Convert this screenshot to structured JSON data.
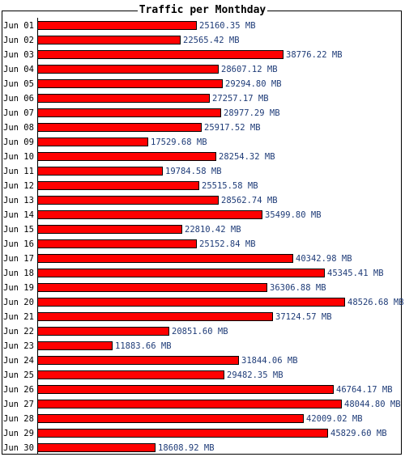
{
  "colors": {
    "bar": "#ff0000",
    "bar_border": "#000000",
    "value_text": "#1f3c78"
  },
  "chart_data": {
    "type": "bar",
    "orientation": "horizontal",
    "title": "Traffic per Monthday",
    "xlabel": "",
    "ylabel": "",
    "grid": false,
    "legend": "none",
    "categories": [
      "Jun 01",
      "Jun 02",
      "Jun 03",
      "Jun 04",
      "Jun 05",
      "Jun 06",
      "Jun 07",
      "Jun 08",
      "Jun 09",
      "Jun 10",
      "Jun 11",
      "Jun 12",
      "Jun 13",
      "Jun 14",
      "Jun 15",
      "Jun 16",
      "Jun 17",
      "Jun 18",
      "Jun 19",
      "Jun 20",
      "Jun 21",
      "Jun 22",
      "Jun 23",
      "Jun 24",
      "Jun 25",
      "Jun 26",
      "Jun 27",
      "Jun 28",
      "Jun 29",
      "Jun 30"
    ],
    "values": [
      25160.35,
      22565.42,
      38776.22,
      28607.12,
      29294.8,
      27257.17,
      28977.29,
      25917.52,
      17529.68,
      28254.32,
      19784.58,
      25515.58,
      28562.74,
      35499.8,
      22810.42,
      25152.84,
      40342.98,
      45345.41,
      36306.88,
      48526.68,
      37124.57,
      20851.6,
      11883.66,
      31844.06,
      29482.35,
      46764.17,
      48044.8,
      42009.02,
      45829.6,
      18608.92
    ],
    "value_labels": [
      "25160.35 MB",
      "22565.42 MB",
      "38776.22 MB",
      "28607.12 MB",
      "29294.80 MB",
      "27257.17 MB",
      "28977.29 MB",
      "25917.52 MB",
      "17529.68 MB",
      "28254.32 MB",
      "19784.58 MB",
      "25515.58 MB",
      "28562.74 MB",
      "35499.80 MB",
      "22810.42 MB",
      "25152.84 MB",
      "40342.98 MB",
      "45345.41 MB",
      "36306.88 MB",
      "48526.68 MB",
      "37124.57 MB",
      "20851.60 MB",
      "11883.66 MB",
      "31844.06 MB",
      "29482.35 MB",
      "46764.17 MB",
      "48044.80 MB",
      "42009.02 MB",
      "45829.60 MB",
      "18608.92 MB"
    ],
    "unit": "MB"
  }
}
